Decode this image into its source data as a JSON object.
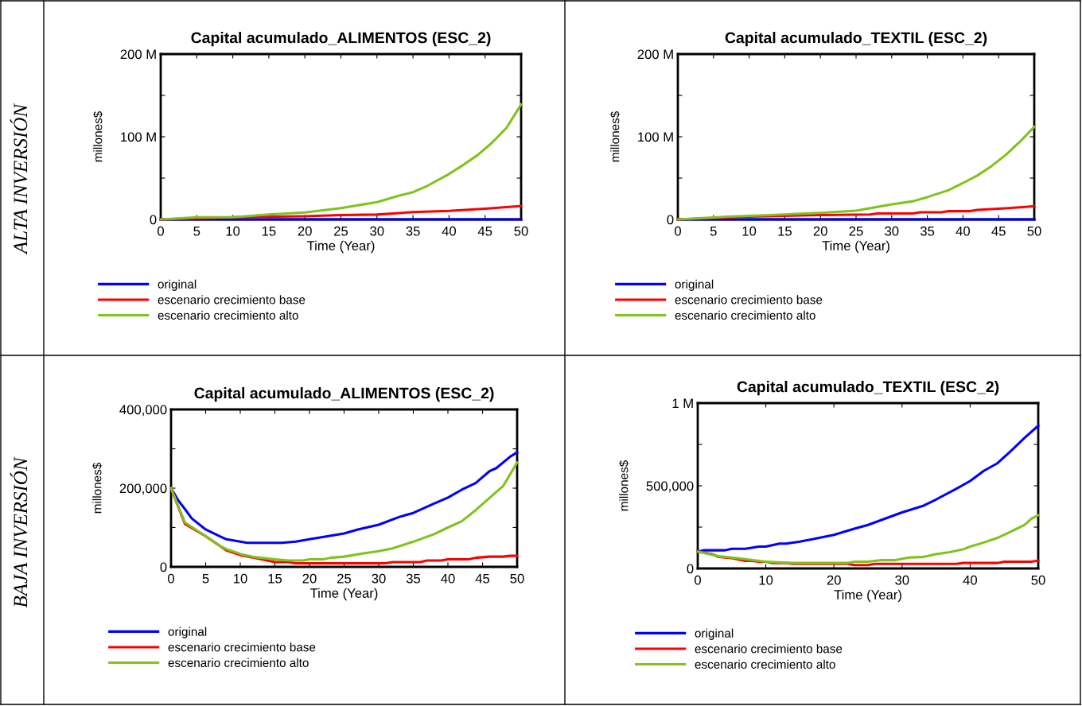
{
  "chart_data": [
    {
      "type": "line",
      "title": "Capital acumulado_ALIMENTOS (ESC_2)",
      "xlabel": "Time (Year)",
      "ylabel": "millones$",
      "annotations": [
        "ALTA INVERSIÓN"
      ],
      "legend": "bottom",
      "grid": false,
      "xlim": [
        0,
        50
      ],
      "xticks": [
        0,
        5,
        10,
        15,
        20,
        25,
        30,
        35,
        40,
        45,
        50
      ],
      "ylim": [
        0,
        200000000
      ],
      "yticks": [
        {
          "value": 0,
          "label": "0"
        },
        {
          "value": 50000000,
          "label": null
        },
        {
          "value": 100000000,
          "label": "100 M"
        },
        {
          "value": 150000000,
          "label": null
        },
        {
          "value": 200000000,
          "label": "200 M"
        }
      ],
      "series": [
        {
          "name": "original",
          "color": "#0000ff",
          "x": [
            0,
            50
          ],
          "values": [
            0,
            0
          ]
        },
        {
          "name": "escenario crecimiento base",
          "color": "#ff0000",
          "x": [
            0,
            10,
            20,
            25,
            30,
            35,
            40,
            45,
            50
          ],
          "values": [
            0,
            2600000,
            3900000,
            5200000,
            5900000,
            8800000,
            10400000,
            13000000,
            16300000
          ]
        },
        {
          "name": "escenario crecimiento alto",
          "color": "#7fc31c",
          "x": [
            0,
            5,
            10,
            15,
            20,
            25,
            30,
            33,
            35,
            37,
            40,
            42,
            44,
            46,
            48,
            50
          ],
          "values": [
            0,
            2600000,
            2600000,
            6000000,
            8500000,
            13700000,
            21000000,
            28600000,
            33000000,
            40600000,
            55000000,
            66000000,
            78000000,
            93000000,
            111000000,
            139000000
          ]
        }
      ]
    },
    {
      "type": "line",
      "title": "Capital acumulado_TEXTIL (ESC_2)",
      "xlabel": "Time (Year)",
      "ylabel": "millones$",
      "legend": "bottom",
      "grid": false,
      "xlim": [
        0,
        50
      ],
      "xticks": [
        0,
        5,
        10,
        15,
        20,
        25,
        30,
        35,
        40,
        45,
        50
      ],
      "ylim": [
        0,
        200000000
      ],
      "yticks": [
        {
          "value": 0,
          "label": "0"
        },
        {
          "value": 50000000,
          "label": null
        },
        {
          "value": 100000000,
          "label": "100 M"
        },
        {
          "value": 150000000,
          "label": null
        },
        {
          "value": 200000000,
          "label": "200 M"
        }
      ],
      "series": [
        {
          "name": "original",
          "color": "#0000ff",
          "x": [
            0,
            50
          ],
          "values": [
            0,
            0
          ]
        },
        {
          "name": "escenario crecimiento base",
          "color": "#ff0000",
          "x": [
            0,
            10,
            20,
            27,
            28,
            33,
            34,
            37,
            38,
            41,
            42,
            45,
            48,
            50
          ],
          "values": [
            0,
            3300000,
            5300000,
            6000000,
            7300000,
            7300000,
            8600000,
            8600000,
            10000000,
            10000000,
            11600000,
            13000000,
            14600000,
            16000000
          ]
        },
        {
          "name": "escenario crecimiento alto",
          "color": "#7fc31c",
          "x": [
            0,
            7,
            13,
            20,
            25,
            30,
            33,
            35,
            38,
            40,
            42,
            44,
            46,
            48,
            50
          ],
          "values": [
            0,
            3300000,
            5300000,
            8000000,
            10600000,
            18300000,
            22000000,
            27000000,
            35500000,
            44000000,
            53000000,
            64500000,
            78000000,
            94000000,
            112000000
          ]
        }
      ]
    },
    {
      "type": "line",
      "title": "Capital acumulado_ALIMENTOS (ESC_2)",
      "xlabel": "Time (Year)",
      "ylabel": "millones$",
      "annotations": [
        "BAJA INVERSIÓN"
      ],
      "legend": "bottom",
      "grid": false,
      "xlim": [
        0,
        50
      ],
      "xticks": [
        0,
        5,
        10,
        15,
        20,
        25,
        30,
        35,
        40,
        45,
        50
      ],
      "ylim": [
        0,
        400000
      ],
      "yticks": [
        {
          "value": 0,
          "label": "0"
        },
        {
          "value": 100000,
          "label": null
        },
        {
          "value": 200000,
          "label": "200,000"
        },
        {
          "value": 300000,
          "label": null
        },
        {
          "value": 400000,
          "label": "400,000"
        }
      ],
      "series": [
        {
          "name": "original",
          "color": "#0000ff",
          "x": [
            0,
            1,
            2,
            3,
            5,
            7,
            8,
            11,
            16,
            18,
            20,
            25,
            27,
            30,
            33,
            35,
            38,
            40,
            42,
            44,
            46,
            47,
            49,
            50
          ],
          "values": [
            200000,
            170000,
            147000,
            123000,
            95000,
            78000,
            70000,
            61000,
            61000,
            64000,
            70000,
            85000,
            95000,
            107000,
            127000,
            137000,
            161000,
            176000,
            196000,
            213000,
            243000,
            251000,
            280000,
            291000
          ]
        },
        {
          "name": "escenario crecimiento base",
          "color": "#ff0000",
          "x": [
            0,
            2,
            5,
            8,
            10,
            12,
            15,
            17,
            18,
            31,
            32,
            36,
            37,
            39,
            40,
            43,
            44,
            46,
            48,
            49,
            50
          ],
          "values": [
            200000,
            109000,
            78000,
            42000,
            30000,
            23000,
            12000,
            12000,
            9000,
            9000,
            12000,
            12000,
            16000,
            16000,
            19000,
            19000,
            23000,
            26000,
            26000,
            28000,
            28000
          ]
        },
        {
          "name": "escenario crecimiento alto",
          "color": "#7fc31c",
          "x": [
            0,
            2,
            5,
            7,
            8,
            10,
            12,
            15,
            17,
            19,
            20,
            22,
            23,
            25,
            28,
            30,
            32,
            35,
            38,
            40,
            42,
            44,
            46,
            48,
            50
          ],
          "values": [
            200000,
            113000,
            78000,
            54000,
            45000,
            33000,
            25000,
            19000,
            16000,
            16000,
            19000,
            19000,
            23000,
            26000,
            35000,
            40000,
            47000,
            64000,
            83000,
            100000,
            116000,
            144000,
            175000,
            206000,
            265000
          ]
        }
      ]
    },
    {
      "type": "line",
      "title": "Capital acumulado_TEXTIL (ESC_2)",
      "xlabel": "Time (Year)",
      "ylabel": "millones$",
      "legend": "bottom",
      "grid": false,
      "xlim": [
        0,
        50
      ],
      "xticks": [
        0,
        10,
        20,
        30,
        40,
        50
      ],
      "ylim": [
        0,
        1000000
      ],
      "yticks": [
        {
          "value": 0,
          "label": "0"
        },
        {
          "value": 250000,
          "label": null
        },
        {
          "value": 500000,
          "label": "500,000"
        },
        {
          "value": 750000,
          "label": null
        },
        {
          "value": 1000000,
          "label": "1 M"
        }
      ],
      "series": [
        {
          "name": "original",
          "color": "#0000ff",
          "x": [
            0,
            1,
            4,
            5,
            7,
            9,
            10,
            12,
            13,
            15,
            20,
            23,
            25,
            30,
            33,
            35,
            38,
            40,
            42,
            44,
            46,
            48,
            50
          ],
          "values": [
            102000,
            110000,
            110000,
            119000,
            119000,
            132000,
            132000,
            150000,
            150000,
            162000,
            203000,
            240000,
            263000,
            339000,
            377000,
            417000,
            483000,
            529000,
            590000,
            636000,
            711000,
            790000,
            863000
          ]
        },
        {
          "name": "escenario crecimiento base",
          "color": "#ff0000",
          "x": [
            0,
            2,
            3,
            4,
            5,
            7,
            8,
            9,
            10,
            11,
            13,
            14,
            22,
            23,
            25,
            26,
            38,
            39,
            44,
            45,
            49,
            50
          ],
          "values": [
            102000,
            88000,
            71000,
            66000,
            63000,
            46000,
            46000,
            41000,
            41000,
            33000,
            33000,
            28000,
            28000,
            20000,
            20000,
            28000,
            28000,
            33000,
            33000,
            41000,
            41000,
            48000
          ]
        },
        {
          "name": "escenario crecimiento alto",
          "color": "#7fc31c",
          "x": [
            0,
            3,
            5,
            10,
            14,
            22,
            23,
            25,
            27,
            29,
            31,
            33,
            35,
            37,
            39,
            40,
            42,
            44,
            46,
            48,
            49,
            50
          ],
          "values": [
            102000,
            74000,
            66000,
            41000,
            33000,
            33000,
            41000,
            41000,
            50000,
            50000,
            66000,
            69000,
            86000,
            99000,
            116000,
            132000,
            157000,
            185000,
            223000,
            264000,
            301000,
            322000
          ]
        }
      ]
    }
  ]
}
